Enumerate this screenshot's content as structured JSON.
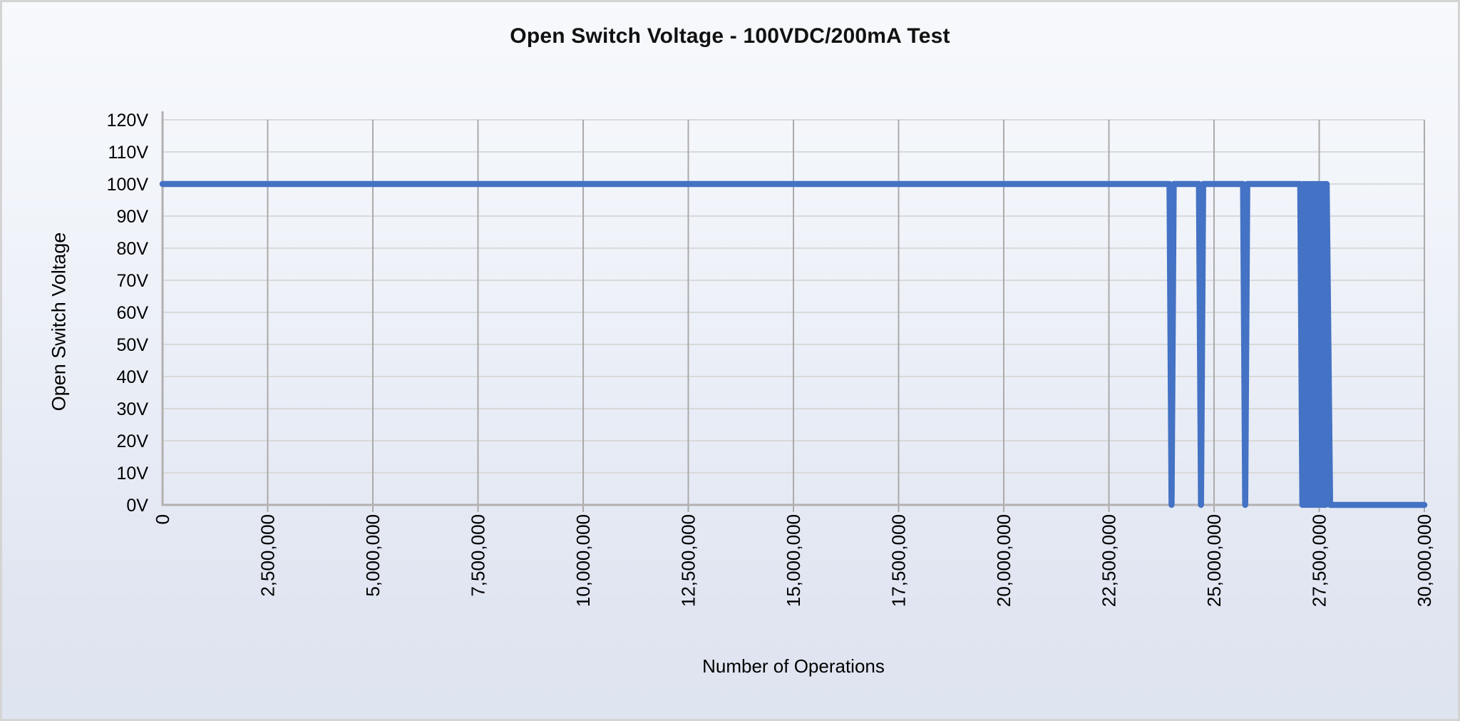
{
  "title": "Open Switch Voltage - 100VDC/200mA Test",
  "colors": {
    "line": "#4472C4",
    "h_grid": "#d9d9d9",
    "v_grid": "#acaaaa",
    "axis": "#b3b0b0",
    "text": "#000000",
    "border": "#d4d4d4",
    "bg_top": "#f7f9fc",
    "bg_bottom": "#dee4f0"
  },
  "chart_data": {
    "type": "line",
    "title": "Open Switch Voltage - 100VDC/200mA Test",
    "xlabel": "Number of Operations",
    "ylabel": "Open Switch Voltage",
    "xlim": [
      0,
      30000000
    ],
    "ylim": [
      0,
      120
    ],
    "grid": true,
    "legend": "none",
    "x_tick_values": [
      0,
      2500000,
      5000000,
      7500000,
      10000000,
      12500000,
      15000000,
      17500000,
      20000000,
      22500000,
      25000000,
      27500000,
      30000000
    ],
    "x_tick_labels": [
      "0",
      "2,500,000",
      "5,000,000",
      "7,500,000",
      "10,000,000",
      "12,500,000",
      "15,000,000",
      "17,500,000",
      "20,000,000",
      "22,500,000",
      "25,000,000",
      "27,500,000",
      "30,000,000"
    ],
    "y_tick_values": [
      0,
      10,
      20,
      30,
      40,
      50,
      60,
      70,
      80,
      90,
      100,
      110,
      120
    ],
    "y_tick_labels": [
      "0V",
      "10V",
      "20V",
      "30V",
      "40V",
      "50V",
      "60V",
      "70V",
      "80V",
      "90V",
      "100V",
      "110V",
      "120V"
    ],
    "series": [
      {
        "name": "Open Switch Voltage",
        "points": [
          [
            0,
            100
          ],
          [
            23940000,
            100
          ],
          [
            23990000,
            0
          ],
          [
            24040000,
            100
          ],
          [
            24640000,
            100
          ],
          [
            24690000,
            0
          ],
          [
            24740000,
            100
          ],
          [
            25690000,
            100
          ],
          [
            25740000,
            0
          ],
          [
            25790000,
            100
          ],
          [
            27050000,
            100
          ],
          [
            27100000,
            0
          ],
          [
            27127500,
            100
          ],
          [
            27155000,
            0
          ],
          [
            27182500,
            100
          ],
          [
            27210000,
            0
          ],
          [
            27237500,
            100
          ],
          [
            27265000,
            0
          ],
          [
            27292500,
            100
          ],
          [
            27320000,
            0
          ],
          [
            27347500,
            100
          ],
          [
            27375000,
            0
          ],
          [
            27402500,
            100
          ],
          [
            27430000,
            0
          ],
          [
            27457500,
            100
          ],
          [
            27485000,
            0
          ],
          [
            27512500,
            100
          ],
          [
            27540000,
            0
          ],
          [
            27567500,
            100
          ],
          [
            27595000,
            0
          ],
          [
            27622500,
            100
          ],
          [
            27650000,
            0
          ],
          [
            27677500,
            100
          ],
          [
            27760000,
            0
          ],
          [
            30000000,
            0
          ]
        ]
      }
    ]
  }
}
